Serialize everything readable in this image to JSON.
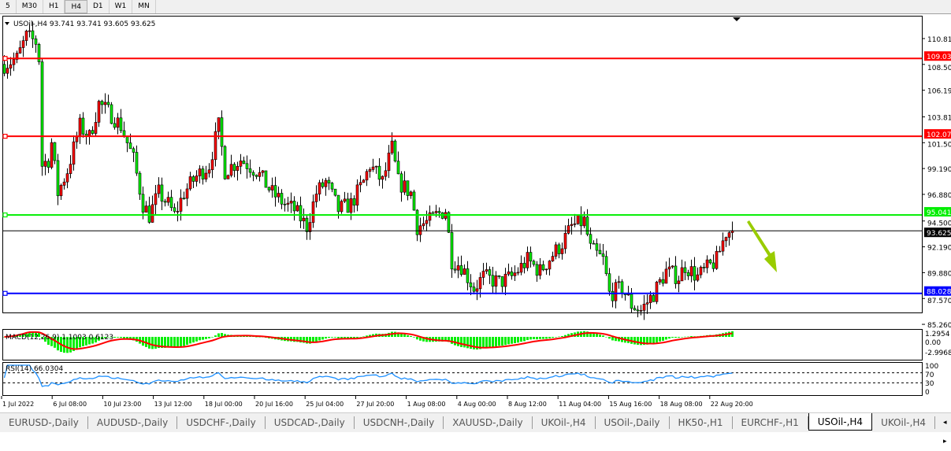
{
  "toolbar": {
    "timeframes": [
      "5",
      "M30",
      "H1",
      "H4",
      "D1",
      "W1",
      "MN"
    ],
    "active": "H4"
  },
  "chart": {
    "symbol_info": "USOil-,H4  93.741 93.741 93.605 93.625",
    "price_ticks": [
      "110.810",
      "108.500",
      "106.190",
      "103.810",
      "101.500",
      "99.190",
      "96.880",
      "94.500",
      "92.190",
      "89.880",
      "87.570",
      "85.260"
    ],
    "hlines": [
      {
        "price": 109.036,
        "label": "109.036",
        "color": "#ff0000"
      },
      {
        "price": 102.076,
        "label": "102.076",
        "color": "#ff0000"
      },
      {
        "price": 95.041,
        "label": "95.041",
        "color": "#00ee00"
      },
      {
        "price": 88.028,
        "label": "88.028",
        "color": "#0000ff"
      }
    ],
    "current_price": {
      "price": 93.625,
      "label": "93.625"
    },
    "bull_color": "#ff0000",
    "bear_color": "#00ee00",
    "arrow_color": "#99cc00",
    "arrow_direction": "down",
    "time_labels": [
      "1 Jul 2022",
      "6 Jul 08:00",
      "10 Jul 23:00",
      "13 Jul 12:00",
      "18 Jul 00:00",
      "20 Jul 16:00",
      "25 Jul 04:00",
      "27 Jul 20:00",
      "1 Aug 08:00",
      "4 Aug 00:00",
      "8 Aug 12:00",
      "11 Aug 04:00",
      "15 Aug 16:00",
      "18 Aug 08:00",
      "22 Aug 20:00"
    ]
  },
  "chart_data": {
    "type": "candlestick",
    "symbol": "USOil-",
    "timeframe": "H4",
    "ylim": [
      85.26,
      110.81
    ],
    "close_path_by_bar": [
      [
        0,
        108.5
      ],
      [
        4,
        109
      ],
      [
        7,
        111
      ],
      [
        10,
        110.5
      ],
      [
        11,
        109
      ],
      [
        12,
        99.5
      ],
      [
        14,
        100
      ],
      [
        15,
        101.5
      ],
      [
        17,
        97
      ],
      [
        20,
        99
      ],
      [
        24,
        103
      ],
      [
        27,
        102
      ],
      [
        30,
        105
      ],
      [
        34,
        104
      ],
      [
        37,
        103
      ],
      [
        41,
        100
      ],
      [
        44,
        96
      ],
      [
        46,
        95
      ],
      [
        49,
        97
      ],
      [
        52,
        96
      ],
      [
        54,
        95
      ],
      [
        57,
        97
      ],
      [
        61,
        98.5
      ],
      [
        65,
        99.5
      ],
      [
        68,
        103
      ],
      [
        70,
        99
      ],
      [
        75,
        100
      ],
      [
        80,
        99
      ],
      [
        85,
        97
      ],
      [
        89,
        96
      ],
      [
        92,
        95.5
      ],
      [
        96,
        94
      ],
      [
        99,
        97
      ],
      [
        102,
        98
      ],
      [
        106,
        95.5
      ],
      [
        110,
        96
      ],
      [
        114,
        98
      ],
      [
        116,
        99.5
      ],
      [
        120,
        98
      ],
      [
        123,
        101
      ],
      [
        125,
        98
      ],
      [
        129,
        97
      ],
      [
        131,
        94
      ],
      [
        135,
        94.5
      ],
      [
        137,
        95
      ],
      [
        140,
        95.5
      ],
      [
        142,
        91
      ],
      [
        145,
        90.5
      ],
      [
        149,
        88.5
      ],
      [
        152,
        89.5
      ],
      [
        157,
        89
      ],
      [
        161,
        89.5
      ],
      [
        166,
        91
      ],
      [
        170,
        90
      ],
      [
        174,
        91.5
      ],
      [
        177,
        92.5
      ],
      [
        180,
        94
      ],
      [
        184,
        94.5
      ],
      [
        186,
        92
      ],
      [
        190,
        91
      ],
      [
        192,
        88
      ],
      [
        196,
        88.5
      ],
      [
        199,
        87
      ],
      [
        202,
        86.5
      ],
      [
        206,
        88
      ],
      [
        210,
        90
      ],
      [
        214,
        89.5
      ],
      [
        216,
        90.5
      ],
      [
        220,
        89.5
      ],
      [
        222,
        90
      ],
      [
        226,
        91
      ],
      [
        229,
        93.5
      ],
      [
        231,
        93.625
      ]
    ],
    "macd": {
      "label": "MACD(12,26,9) 1.1003 0.6123",
      "ticks": [
        "1.2954",
        "0.00",
        "-2.9968"
      ]
    },
    "rsi": {
      "label": "RSI(14) 66.0304",
      "ticks": [
        "100",
        "70",
        "30",
        "0"
      ]
    }
  },
  "tabs": [
    "EURUSD-,Daily",
    "AUDUSD-,Daily",
    "USDCHF-,Daily",
    "USDCAD-,Daily",
    "USDCNH-,Daily",
    "XAUUSD-,Daily",
    "UKOil-,H4",
    "USOil-,Daily",
    "HK50-,H1",
    "EURCHF-,H1",
    "USOil-,H4",
    "UKOil-,H4"
  ],
  "active_tab": "USOil-,H4",
  "tab_scroll": "◂ ▸"
}
